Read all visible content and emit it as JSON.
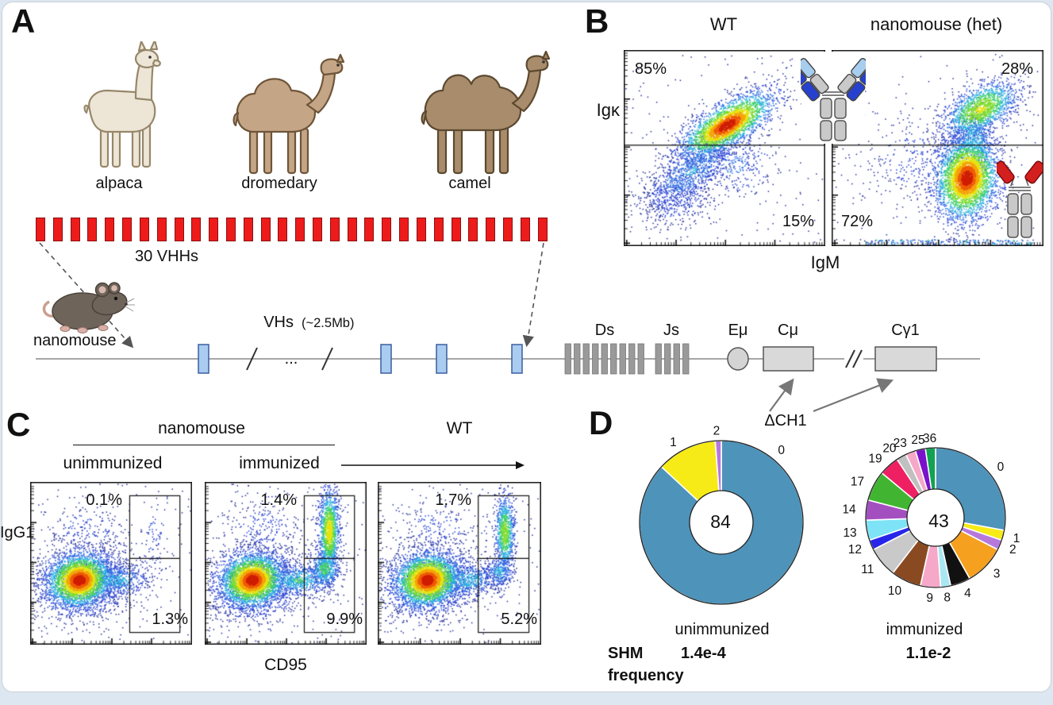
{
  "figure": {
    "panels": {
      "A": {
        "letter": "A",
        "animals": [
          {
            "label": "alpaca"
          },
          {
            "label": "dromedary"
          },
          {
            "label": "camel"
          }
        ],
        "vhh_row": {
          "count": 30,
          "label": "30 VHHs",
          "color": "#ee1b1b"
        },
        "mouse_label": "nanomouse",
        "locus": {
          "vhs_label": "VHs",
          "vhs_size": "(~2.5Mb)",
          "ellipsis": "...",
          "ds_label": "Ds",
          "js_label": "Js",
          "emu_label": "Eμ",
          "cmu_label": "Cμ",
          "cgamma1_label": "Cγ1",
          "delta_ch1_label": "ΔCH1",
          "vh_segment_count": 4,
          "d_segment_count": 9,
          "j_segment_count": 4,
          "vh_box_color": "#aaccf0",
          "segment_color": "#9a9a9a"
        }
      },
      "B": {
        "letter": "B",
        "y_label": "Igκ",
        "x_label": "IgM",
        "icons": {
          "igg": {
            "name": "conventional-igg-antibody-icon",
            "light_blue": "#a7cdef",
            "dark_blue": "#2741cf",
            "gray": "#c9c9c9"
          },
          "hcab": {
            "name": "heavy-chain-only-antibody-icon",
            "red": "#d41f1f",
            "gray": "#c9c9c9"
          }
        }
      },
      "C": {
        "letter": "C",
        "group_label": "nanomouse",
        "wt_label": "WT",
        "y_label": "IgG1",
        "x_label": "CD95"
      },
      "D": {
        "letter": "D",
        "shm": {
          "line1": "SHM",
          "line2": "frequency",
          "values": [
            "1.4e-4",
            "1.1e-2"
          ]
        }
      }
    }
  },
  "chart_data": [
    {
      "id": "B-WT",
      "type": "scatter-density",
      "title": "WT",
      "x_label": "IgM",
      "y_label": "Igκ",
      "axis_scale": "log",
      "quadrant_labels": {
        "upper_left": "85%",
        "lower_right": "15%"
      }
    },
    {
      "id": "B-het",
      "type": "scatter-density",
      "title": "nanomouse (het)",
      "x_label": "IgM",
      "y_label": "Igκ",
      "axis_scale": "log",
      "quadrant_labels": {
        "upper_right": "28%",
        "lower_left": "72%"
      }
    },
    {
      "id": "C-unimmunized",
      "type": "scatter-density",
      "title": "unimmunized",
      "x_label": "CD95",
      "y_label": "IgG1",
      "axis_scale": "log",
      "gate_labels": {
        "top": "0.1%",
        "bottom": "1.3%"
      }
    },
    {
      "id": "C-immunized",
      "type": "scatter-density",
      "title": "immunized",
      "x_label": "CD95",
      "y_label": "IgG1",
      "axis_scale": "log",
      "gate_labels": {
        "top": "1.4%",
        "bottom": "9.9%"
      }
    },
    {
      "id": "C-WT",
      "type": "scatter-density",
      "title": "WT",
      "x_label": "CD95",
      "y_label": "IgG1",
      "axis_scale": "log",
      "gate_labels": {
        "top": "1.7%",
        "bottom": "5.2%"
      }
    },
    {
      "id": "D-unimmunized",
      "type": "pie",
      "title": "unimmunized",
      "center_label": "84",
      "shm_frequency": "1.4e-4",
      "slices": [
        {
          "label": "0",
          "value": 73,
          "color": "#4e93ba",
          "label_angle_deg": 38
        },
        {
          "label": "1",
          "value": 10,
          "color": "#f6eb16",
          "label_angle_deg": 331
        },
        {
          "label": "2",
          "value": 1,
          "color": "#b678dd",
          "label_angle_deg": 357
        }
      ]
    },
    {
      "id": "D-immunized",
      "type": "pie",
      "title": "immunized",
      "center_label": "43",
      "shm_frequency": "1.1e-2",
      "slices": [
        {
          "label": "0",
          "value": 12,
          "color": "#4e93ba"
        },
        {
          "label": "1",
          "value": 1,
          "color": "#f6eb16"
        },
        {
          "label": "2",
          "value": 1,
          "color": "#b678dd"
        },
        {
          "label": "3",
          "value": 4,
          "color": "#f5a01f"
        },
        {
          "label": "4",
          "value": 2,
          "color": "#111111"
        },
        {
          "label": "8",
          "value": 1,
          "color": "#a9e8f2"
        },
        {
          "label": "9",
          "value": 2,
          "color": "#f6a8c8"
        },
        {
          "label": "10",
          "value": 3,
          "color": "#8a4a21"
        },
        {
          "label": "11",
          "value": 3,
          "color": "#c9c9c9"
        },
        {
          "label": "12",
          "value": 1,
          "color": "#2726e8"
        },
        {
          "label": "13",
          "value": 2,
          "color": "#7fe3f7"
        },
        {
          "label": "14",
          "value": 2,
          "color": "#a44fc0"
        },
        {
          "label": "17",
          "value": 3,
          "color": "#41b531"
        },
        {
          "label": "19",
          "value": 2,
          "color": "#ee2063"
        },
        {
          "label": "20",
          "value": 1,
          "color": "#c0c0c0"
        },
        {
          "label": "23",
          "value": 1,
          "color": "#f6a8c8"
        },
        {
          "label": "25",
          "value": 1,
          "color": "#7a12cc"
        },
        {
          "label": "36",
          "value": 1,
          "color": "#12a352"
        }
      ]
    }
  ]
}
